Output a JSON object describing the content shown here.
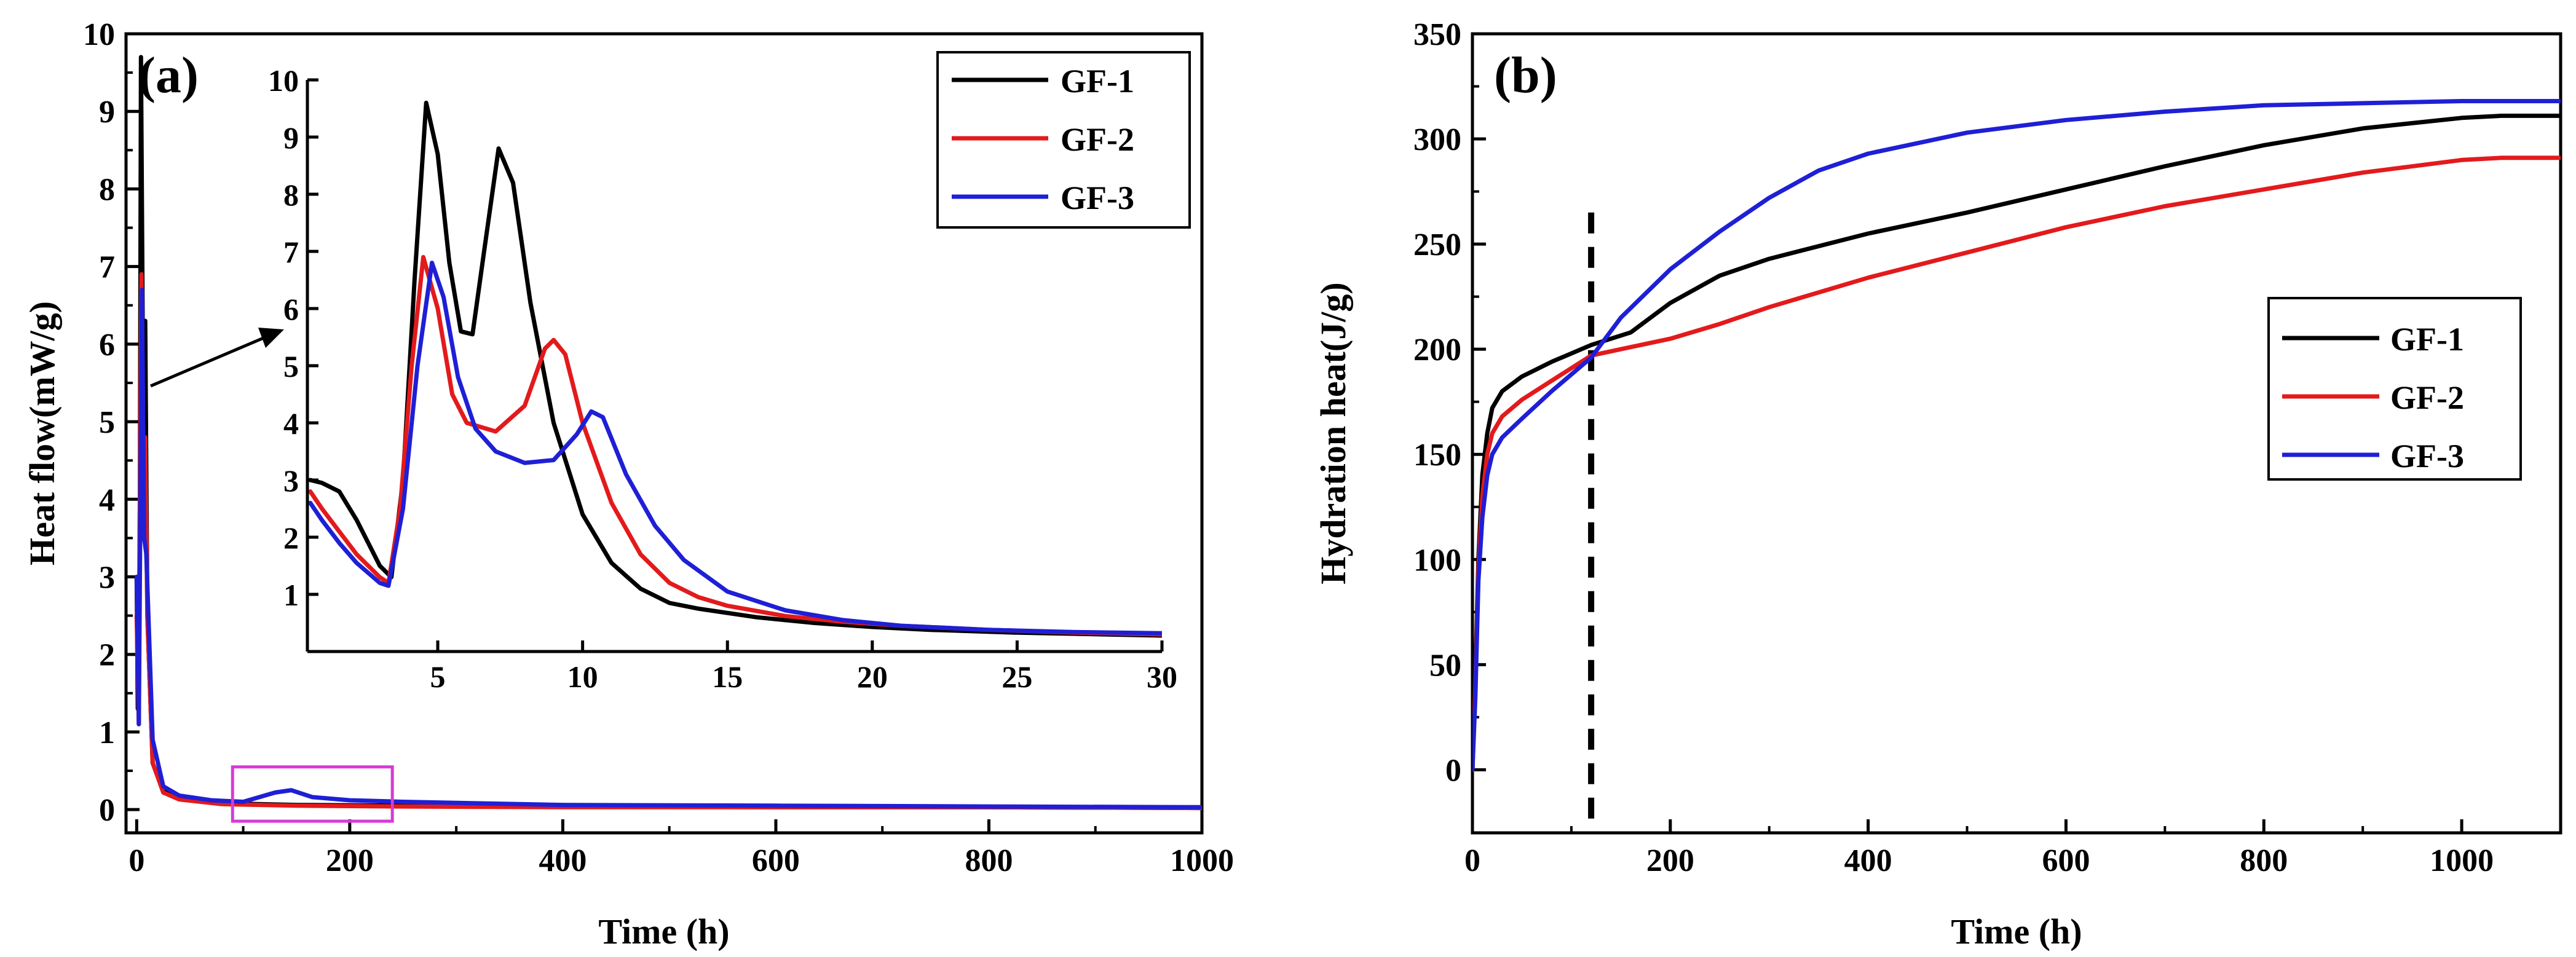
{
  "colors": {
    "gf1": "#000000",
    "gf2": "#e31a1c",
    "gf3": "#1f1fd6",
    "highlight": "#d63bd6"
  },
  "chart_data": [
    {
      "id": "a",
      "type": "line",
      "panel_label": "(a)",
      "xlabel": "Time (h)",
      "ylabel": "Heat flow(mW/g)",
      "xlim": [
        -10,
        1000
      ],
      "ylim": [
        -0.3,
        10
      ],
      "xticks": [
        0,
        200,
        400,
        600,
        800,
        1000
      ],
      "yticks": [
        0,
        1,
        2,
        3,
        4,
        5,
        6,
        7,
        8,
        9,
        10
      ],
      "legend": [
        "GF-1",
        "GF-2",
        "GF-3"
      ],
      "legend_position": "top-right",
      "highlight_box": {
        "x": [
          90,
          240
        ],
        "y": [
          -0.15,
          0.55
        ]
      },
      "series": [
        {
          "name": "GF-1",
          "color_key": "gf1",
          "points": [
            [
              0,
              3
            ],
            [
              1,
              1.3
            ],
            [
              2,
              1.8
            ],
            [
              3,
              4
            ],
            [
              4,
              9.7
            ],
            [
              6,
              5.5
            ],
            [
              8,
              6.3
            ],
            [
              10,
              2.5
            ],
            [
              15,
              0.6
            ],
            [
              25,
              0.25
            ],
            [
              40,
              0.15
            ],
            [
              80,
              0.08
            ],
            [
              150,
              0.06
            ],
            [
              250,
              0.05
            ],
            [
              400,
              0.04
            ],
            [
              600,
              0.03
            ],
            [
              800,
              0.03
            ],
            [
              1000,
              0.02
            ]
          ]
        },
        {
          "name": "GF-2",
          "color_key": "gf2",
          "points": [
            [
              0,
              2.5
            ],
            [
              2,
              1.1
            ],
            [
              3,
              4
            ],
            [
              4.5,
              6.9
            ],
            [
              6,
              4.5
            ],
            [
              8,
              4.8
            ],
            [
              10,
              2.5
            ],
            [
              15,
              0.6
            ],
            [
              25,
              0.22
            ],
            [
              40,
              0.13
            ],
            [
              80,
              0.07
            ],
            [
              150,
              0.05
            ],
            [
              250,
              0.04
            ],
            [
              400,
              0.03
            ],
            [
              600,
              0.03
            ],
            [
              800,
              0.03
            ],
            [
              1000,
              0.02
            ]
          ]
        },
        {
          "name": "GF-3",
          "color_key": "gf3",
          "points": [
            [
              0,
              3
            ],
            [
              2,
              1.1
            ],
            [
              3.5,
              4
            ],
            [
              5,
              6.7
            ],
            [
              7,
              3.5
            ],
            [
              9,
              3.3
            ],
            [
              11,
              2.5
            ],
            [
              15,
              0.9
            ],
            [
              25,
              0.3
            ],
            [
              40,
              0.18
            ],
            [
              70,
              0.12
            ],
            [
              100,
              0.1
            ],
            [
              130,
              0.22
            ],
            [
              145,
              0.25
            ],
            [
              165,
              0.16
            ],
            [
              200,
              0.12
            ],
            [
              250,
              0.1
            ],
            [
              400,
              0.06
            ],
            [
              600,
              0.05
            ],
            [
              800,
              0.04
            ],
            [
              1000,
              0.03
            ]
          ]
        }
      ]
    },
    {
      "id": "a-inset",
      "type": "line",
      "xlim": [
        0.5,
        30
      ],
      "ylim": [
        0,
        10
      ],
      "xticks": [
        5,
        10,
        15,
        20,
        25,
        30
      ],
      "yticks": [
        1,
        2,
        3,
        4,
        5,
        6,
        7,
        8,
        9,
        10
      ],
      "series": [
        {
          "name": "GF-1",
          "color_key": "gf1",
          "points": [
            [
              0.6,
              3
            ],
            [
              1,
              2.95
            ],
            [
              1.6,
              2.8
            ],
            [
              2.2,
              2.3
            ],
            [
              3,
              1.5
            ],
            [
              3.4,
              1.3
            ],
            [
              3.8,
              3
            ],
            [
              4.2,
              6.5
            ],
            [
              4.6,
              9.6
            ],
            [
              5,
              8.7
            ],
            [
              5.4,
              6.8
            ],
            [
              5.8,
              5.6
            ],
            [
              6.2,
              5.55
            ],
            [
              6.6,
              7
            ],
            [
              7.1,
              8.8
            ],
            [
              7.6,
              8.2
            ],
            [
              8.2,
              6.1
            ],
            [
              9,
              4
            ],
            [
              10,
              2.4
            ],
            [
              11,
              1.55
            ],
            [
              12,
              1.1
            ],
            [
              13,
              0.85
            ],
            [
              14,
              0.75
            ],
            [
              16,
              0.6
            ],
            [
              18,
              0.5
            ],
            [
              20,
              0.43
            ],
            [
              22,
              0.38
            ],
            [
              25,
              0.33
            ],
            [
              28,
              0.3
            ],
            [
              30,
              0.28
            ]
          ]
        },
        {
          "name": "GF-2",
          "color_key": "gf2",
          "points": [
            [
              0.6,
              2.8
            ],
            [
              1,
              2.5
            ],
            [
              1.6,
              2.1
            ],
            [
              2.2,
              1.7
            ],
            [
              3,
              1.3
            ],
            [
              3.3,
              1.2
            ],
            [
              3.7,
              2.5
            ],
            [
              4.1,
              5
            ],
            [
              4.5,
              6.9
            ],
            [
              5,
              6
            ],
            [
              5.5,
              4.5
            ],
            [
              6,
              4
            ],
            [
              7,
              3.85
            ],
            [
              8,
              4.3
            ],
            [
              8.7,
              5.3
            ],
            [
              9,
              5.45
            ],
            [
              9.4,
              5.2
            ],
            [
              10,
              4
            ],
            [
              11,
              2.6
            ],
            [
              12,
              1.7
            ],
            [
              13,
              1.2
            ],
            [
              14,
              0.95
            ],
            [
              15,
              0.8
            ],
            [
              17,
              0.62
            ],
            [
              19,
              0.52
            ],
            [
              21,
              0.45
            ],
            [
              24,
              0.38
            ],
            [
              27,
              0.33
            ],
            [
              30,
              0.3
            ]
          ]
        },
        {
          "name": "GF-3",
          "color_key": "gf3",
          "points": [
            [
              0.6,
              2.6
            ],
            [
              1,
              2.3
            ],
            [
              1.6,
              1.9
            ],
            [
              2.2,
              1.55
            ],
            [
              3,
              1.2
            ],
            [
              3.3,
              1.15
            ],
            [
              3.8,
              2.5
            ],
            [
              4.3,
              5
            ],
            [
              4.8,
              6.8
            ],
            [
              5.2,
              6.2
            ],
            [
              5.7,
              4.8
            ],
            [
              6.3,
              3.9
            ],
            [
              7,
              3.5
            ],
            [
              8,
              3.3
            ],
            [
              9,
              3.35
            ],
            [
              9.8,
              3.8
            ],
            [
              10.3,
              4.2
            ],
            [
              10.7,
              4.1
            ],
            [
              11.5,
              3.1
            ],
            [
              12.5,
              2.2
            ],
            [
              13.5,
              1.6
            ],
            [
              15,
              1.05
            ],
            [
              17,
              0.72
            ],
            [
              19,
              0.55
            ],
            [
              21,
              0.45
            ],
            [
              24,
              0.38
            ],
            [
              27,
              0.34
            ],
            [
              30,
              0.32
            ]
          ]
        }
      ]
    },
    {
      "id": "b",
      "type": "line",
      "panel_label": "(b)",
      "xlabel": "Time (h)",
      "ylabel": "Hydration heat(J/g)",
      "xlim": [
        0,
        1100
      ],
      "ylim": [
        -30,
        350
      ],
      "xticks": [
        0,
        200,
        400,
        600,
        800,
        1000
      ],
      "yticks": [
        0,
        50,
        100,
        150,
        200,
        250,
        300,
        350
      ],
      "legend": [
        "GF-1",
        "GF-2",
        "GF-3"
      ],
      "legend_position": "center-right",
      "dashed_marker_x": 120,
      "series": [
        {
          "name": "GF-1",
          "color_key": "gf1",
          "points": [
            [
              0,
              0
            ],
            [
              3,
              45
            ],
            [
              6,
              100
            ],
            [
              10,
              140
            ],
            [
              15,
              160
            ],
            [
              20,
              172
            ],
            [
              30,
              180
            ],
            [
              50,
              187
            ],
            [
              80,
              194
            ],
            [
              120,
              202
            ],
            [
              160,
              208
            ],
            [
              200,
              222
            ],
            [
              250,
              235
            ],
            [
              300,
              243
            ],
            [
              400,
              255
            ],
            [
              500,
              265
            ],
            [
              600,
              276
            ],
            [
              700,
              287
            ],
            [
              800,
              297
            ],
            [
              900,
              305
            ],
            [
              1000,
              310
            ],
            [
              1040,
              311
            ],
            [
              1100,
              311
            ]
          ]
        },
        {
          "name": "GF-2",
          "color_key": "gf2",
          "points": [
            [
              0,
              0
            ],
            [
              3,
              40
            ],
            [
              6,
              95
            ],
            [
              10,
              130
            ],
            [
              15,
              150
            ],
            [
              20,
              160
            ],
            [
              30,
              168
            ],
            [
              50,
              176
            ],
            [
              80,
              185
            ],
            [
              120,
              197
            ],
            [
              160,
              201
            ],
            [
              200,
              205
            ],
            [
              250,
              212
            ],
            [
              300,
              220
            ],
            [
              400,
              234
            ],
            [
              500,
              246
            ],
            [
              600,
              258
            ],
            [
              700,
              268
            ],
            [
              800,
              276
            ],
            [
              900,
              284
            ],
            [
              1000,
              290
            ],
            [
              1040,
              291
            ],
            [
              1100,
              291
            ]
          ]
        },
        {
          "name": "GF-3",
          "color_key": "gf3",
          "points": [
            [
              0,
              0
            ],
            [
              3,
              35
            ],
            [
              6,
              90
            ],
            [
              10,
              120
            ],
            [
              15,
              140
            ],
            [
              20,
              150
            ],
            [
              30,
              158
            ],
            [
              50,
              167
            ],
            [
              80,
              180
            ],
            [
              120,
              196
            ],
            [
              150,
              215
            ],
            [
              200,
              238
            ],
            [
              250,
              256
            ],
            [
              300,
              272
            ],
            [
              350,
              285
            ],
            [
              400,
              293
            ],
            [
              500,
              303
            ],
            [
              600,
              309
            ],
            [
              700,
              313
            ],
            [
              800,
              316
            ],
            [
              900,
              317
            ],
            [
              1000,
              318
            ],
            [
              1100,
              318
            ]
          ]
        }
      ]
    }
  ]
}
